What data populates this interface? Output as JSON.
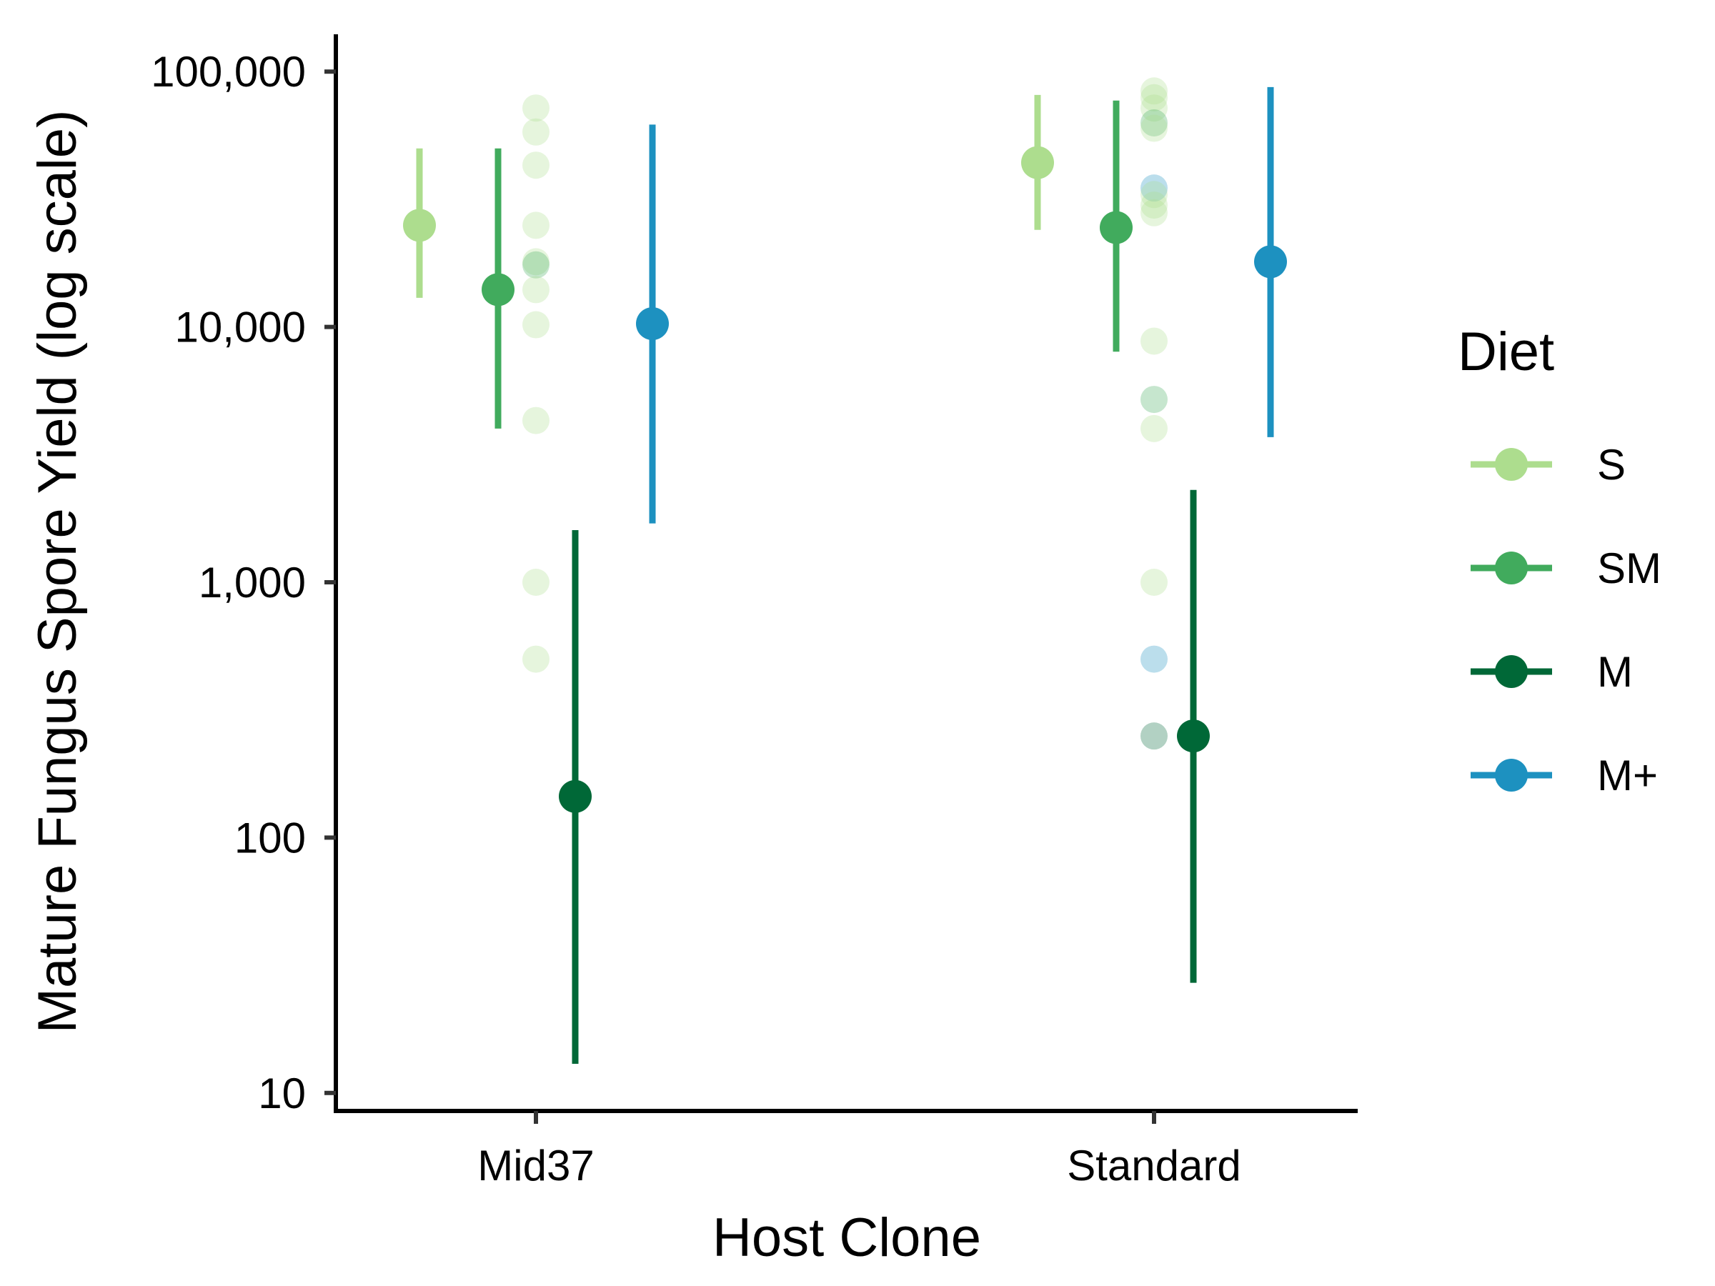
{
  "chart_data": {
    "type": "scatter",
    "xlabel": "Host Clone",
    "ylabel": "Mature Fungus Spore Yield (log scale)",
    "yscale": "log",
    "ylim": [
      8.5,
      140000
    ],
    "yticks": [
      10,
      100,
      1000,
      10000,
      100000
    ],
    "ytick_labels": [
      "10",
      "100",
      "1,000",
      "10,000",
      "100,000"
    ],
    "categories": [
      "Mid37",
      "Standard"
    ],
    "grid": false,
    "legend": {
      "title": "Diet",
      "position": "right"
    },
    "series": [
      {
        "name": "S",
        "color": "#addd8e",
        "points": [
          {
            "x": "Mid37",
            "y": 25000,
            "ymin": 13000,
            "ymax": 50000
          },
          {
            "x": "Standard",
            "y": 44000,
            "ymin": 24000,
            "ymax": 81000
          }
        ]
      },
      {
        "name": "SM",
        "color": "#41ab5d",
        "points": [
          {
            "x": "Mid37",
            "y": 14000,
            "ymin": 4000,
            "ymax": 50000
          },
          {
            "x": "Standard",
            "y": 24500,
            "ymin": 8000,
            "ymax": 77000
          }
        ]
      },
      {
        "name": "M",
        "color": "#006837",
        "points": [
          {
            "x": "Mid37",
            "y": 145,
            "ymin": 13,
            "ymax": 1600
          },
          {
            "x": "Standard",
            "y": 250,
            "ymin": 27,
            "ymax": 2300
          }
        ]
      },
      {
        "name": "M+",
        "color": "#1d91c0",
        "points": [
          {
            "x": "Mid37",
            "y": 10300,
            "ymin": 1700,
            "ymax": 62000
          },
          {
            "x": "Standard",
            "y": 18000,
            "ymin": 3700,
            "ymax": 87000
          }
        ]
      }
    ],
    "raw_points": [
      {
        "x": "Mid37",
        "diet": "S",
        "y": 72000
      },
      {
        "x": "Mid37",
        "diet": "S",
        "y": 58000
      },
      {
        "x": "Mid37",
        "diet": "S",
        "y": 43000
      },
      {
        "x": "Mid37",
        "diet": "S",
        "y": 25000
      },
      {
        "x": "Mid37",
        "diet": "S",
        "y": 18000
      },
      {
        "x": "Mid37",
        "diet": "SM",
        "y": 17500
      },
      {
        "x": "Mid37",
        "diet": "S",
        "y": 14000
      },
      {
        "x": "Mid37",
        "diet": "S",
        "y": 10200
      },
      {
        "x": "Mid37",
        "diet": "S",
        "y": 4300
      },
      {
        "x": "Mid37",
        "diet": "S",
        "y": 1000
      },
      {
        "x": "Mid37",
        "diet": "S",
        "y": 500
      },
      {
        "x": "Standard",
        "diet": "S",
        "y": 84000
      },
      {
        "x": "Standard",
        "diet": "S",
        "y": 79000
      },
      {
        "x": "Standard",
        "diet": "S",
        "y": 72000
      },
      {
        "x": "Standard",
        "diet": "SM",
        "y": 63000
      },
      {
        "x": "Standard",
        "diet": "S",
        "y": 60000
      },
      {
        "x": "Standard",
        "diet": "M+",
        "y": 35000
      },
      {
        "x": "Standard",
        "diet": "S",
        "y": 33000
      },
      {
        "x": "Standard",
        "diet": "S",
        "y": 30000
      },
      {
        "x": "Standard",
        "diet": "S",
        "y": 28000
      },
      {
        "x": "Standard",
        "diet": "S",
        "y": 8800
      },
      {
        "x": "Standard",
        "diet": "SM",
        "y": 5200
      },
      {
        "x": "Standard",
        "diet": "S",
        "y": 4000
      },
      {
        "x": "Standard",
        "diet": "S",
        "y": 1000
      },
      {
        "x": "Standard",
        "diet": "M+",
        "y": 500
      },
      {
        "x": "Standard",
        "diet": "M",
        "y": 250
      }
    ]
  }
}
